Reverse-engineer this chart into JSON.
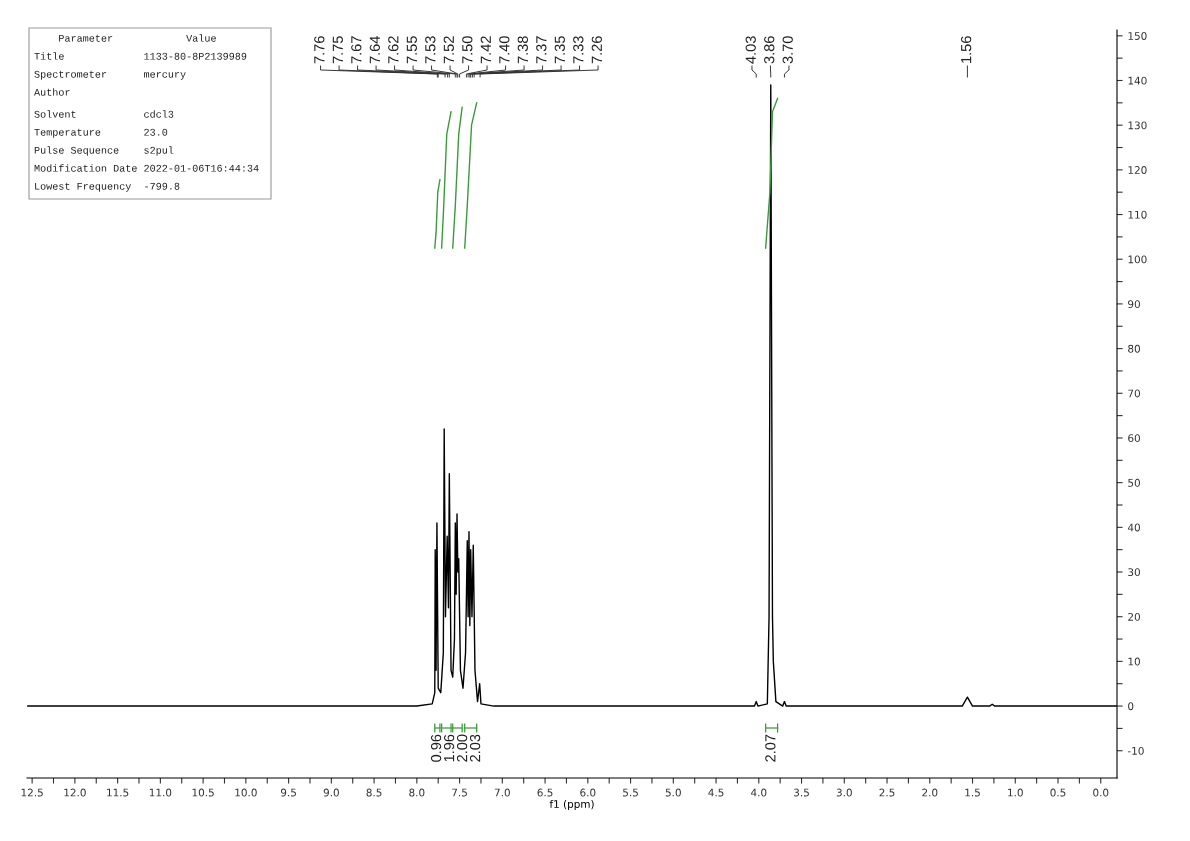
{
  "chart_data": {
    "type": "line",
    "xlabel": "f1 (ppm)",
    "xlim": [
      12.56,
      -0.19
    ],
    "ylim": [
      -16.1,
      151.3
    ],
    "xticks": [
      {
        "value": 12.5,
        "label": "12.5"
      },
      {
        "value": 12.25,
        "label": null
      },
      {
        "value": 12,
        "label": "12.0"
      },
      {
        "value": 11.75,
        "label": null
      },
      {
        "value": 11.5,
        "label": "11.5"
      },
      {
        "value": 11.25,
        "label": null
      },
      {
        "value": 11,
        "label": "11.0"
      },
      {
        "value": 10.75,
        "label": null
      },
      {
        "value": 10.5,
        "label": "10.5"
      },
      {
        "value": 10.25,
        "label": null
      },
      {
        "value": 10,
        "label": "10.0"
      },
      {
        "value": 9.75,
        "label": null
      },
      {
        "value": 9.5,
        "label": "9.5"
      },
      {
        "value": 9.25,
        "label": null
      },
      {
        "value": 9,
        "label": "9.0"
      },
      {
        "value": 8.75,
        "label": null
      },
      {
        "value": 8.5,
        "label": "8.5"
      },
      {
        "value": 8.25,
        "label": null
      },
      {
        "value": 8,
        "label": "8.0"
      },
      {
        "value": 7.75,
        "label": null
      },
      {
        "value": 7.5,
        "label": "7.5"
      },
      {
        "value": 7.25,
        "label": null
      },
      {
        "value": 7,
        "label": "7.0"
      },
      {
        "value": 6.75,
        "label": null
      },
      {
        "value": 6.5,
        "label": "6.5"
      },
      {
        "value": 6.25,
        "label": null
      },
      {
        "value": 6,
        "label": "6.0"
      },
      {
        "value": 5.75,
        "label": null
      },
      {
        "value": 5.5,
        "label": "5.5"
      },
      {
        "value": 5.25,
        "label": null
      },
      {
        "value": 5,
        "label": "5.0"
      },
      {
        "value": 4.75,
        "label": null
      },
      {
        "value": 4.5,
        "label": "4.5"
      },
      {
        "value": 4.25,
        "label": null
      },
      {
        "value": 4,
        "label": "4.0"
      },
      {
        "value": 3.75,
        "label": null
      },
      {
        "value": 3.5,
        "label": "3.5"
      },
      {
        "value": 3.25,
        "label": null
      },
      {
        "value": 3,
        "label": "3.0"
      },
      {
        "value": 2.75,
        "label": null
      },
      {
        "value": 2.5,
        "label": "2.5"
      },
      {
        "value": 2.25,
        "label": null
      },
      {
        "value": 2,
        "label": "2.0"
      },
      {
        "value": 1.75,
        "label": null
      },
      {
        "value": 1.5,
        "label": "1.5"
      },
      {
        "value": 1.25,
        "label": null
      },
      {
        "value": 1,
        "label": "1.0"
      },
      {
        "value": 0.75,
        "label": null
      },
      {
        "value": 0.5,
        "label": "0.5"
      },
      {
        "value": 0.25,
        "label": null
      },
      {
        "value": 0,
        "label": "0.0"
      }
    ],
    "yticks": [
      -10,
      {
        "value": -5,
        "label": null
      },
      0,
      {
        "value": 5,
        "label": null
      },
      10,
      {
        "value": 15,
        "label": null
      },
      20,
      {
        "value": 25,
        "label": null
      },
      30,
      {
        "value": 35,
        "label": null
      },
      40,
      {
        "value": 45,
        "label": null
      },
      50,
      {
        "value": 55,
        "label": null
      },
      60,
      {
        "value": 65,
        "label": null
      },
      70,
      {
        "value": 75,
        "label": null
      },
      80,
      {
        "value": 85,
        "label": null
      },
      90,
      {
        "value": 95,
        "label": null
      },
      100,
      {
        "value": 105,
        "label": null
      },
      110,
      {
        "value": 115,
        "label": null
      },
      120,
      {
        "value": 125,
        "label": null
      },
      130,
      {
        "value": 135,
        "label": null
      },
      140,
      {
        "value": 145,
        "label": null
      },
      150
    ],
    "grid": false,
    "marker": "none",
    "line_style": "solid",
    "series": [
      {
        "color": "#000000",
        "x": [
          12.55,
          8.0,
          7.82,
          7.79,
          7.785,
          7.775,
          7.765,
          7.75,
          7.72,
          7.69,
          7.68,
          7.665,
          7.645,
          7.63,
          7.62,
          7.6,
          7.58,
          7.56,
          7.55,
          7.54,
          7.53,
          7.52,
          7.51,
          7.49,
          7.46,
          7.43,
          7.41,
          7.4,
          7.39,
          7.38,
          7.37,
          7.355,
          7.34,
          7.32,
          7.29,
          7.265,
          7.25,
          7.1,
          4.05,
          4.03,
          4.01,
          3.9,
          3.88,
          3.86,
          3.84,
          3.83,
          3.8,
          3.72,
          3.7,
          3.68,
          1.62,
          1.56,
          1.5,
          1.3,
          1.27,
          1.24,
          -0.18
        ],
        "values": [
          0,
          0,
          0.5,
          3,
          35,
          8,
          41,
          4,
          3,
          12,
          62,
          20,
          38,
          22,
          52,
          8,
          6.5,
          15,
          41,
          25,
          43,
          30,
          33,
          8,
          4,
          12,
          37,
          20,
          39,
          18,
          35,
          20,
          36,
          8,
          1,
          5,
          0.5,
          0,
          0,
          1,
          0,
          0.5,
          20,
          139,
          20,
          10,
          1,
          0,
          1,
          0,
          0,
          2,
          0,
          0,
          0.4,
          0,
          0
        ]
      },
      {
        "color": "#3a9a3a",
        "x": [
          7.79,
          7.775,
          7.755,
          7.73
        ],
        "values": [
          102.5,
          106,
          115,
          117.8
        ]
      },
      {
        "color": "#3a9a3a",
        "x": [
          7.71,
          7.69,
          7.65,
          7.6
        ],
        "values": [
          102.5,
          110,
          128,
          133
        ]
      },
      {
        "color": "#3a9a3a",
        "x": [
          7.58,
          7.55,
          7.51,
          7.47
        ],
        "values": [
          102.5,
          112,
          128,
          134
        ]
      },
      {
        "color": "#3a9a3a",
        "x": [
          7.44,
          7.41,
          7.36,
          7.3
        ],
        "values": [
          102.5,
          112,
          130,
          135
        ]
      },
      {
        "color": "#3a9a3a",
        "x": [
          3.92,
          3.87,
          3.84,
          3.78
        ],
        "values": [
          102.5,
          115,
          133,
          136
        ]
      }
    ],
    "annotations": [
      "    Parameter            Value",
      "Title             1133-80-8P2139989",
      "Spectrometer      mercury",
      "Author",
      "Solvent           cdcl3",
      "Temperature       23.0",
      "Pulse Sequence    s2pul",
      "Modification Date 2022-01-06T16:44:34",
      "Lowest Frequency  -799.8",
      {
        "text": "7.76",
        "x": 7.76
      },
      {
        "text": "7.75",
        "x": 7.75
      },
      {
        "text": "7.67",
        "x": 7.67
      },
      {
        "text": "7.64",
        "x": 7.64
      },
      {
        "text": "7.62",
        "x": 7.62
      },
      {
        "text": "7.55",
        "x": 7.55
      },
      {
        "text": "7.53",
        "x": 7.53
      },
      {
        "text": "7.52",
        "x": 7.52
      },
      {
        "text": "7.50",
        "x": 7.5
      },
      {
        "text": "7.42",
        "x": 7.42
      },
      {
        "text": "7.40",
        "x": 7.4
      },
      {
        "text": "7.38",
        "x": 7.38
      },
      {
        "text": "7.37",
        "x": 7.37
      },
      {
        "text": "7.35",
        "x": 7.35
      },
      {
        "text": "7.33",
        "x": 7.33
      },
      {
        "text": "7.26",
        "x": 7.26
      },
      {
        "text": "4.03",
        "x": 4.03
      },
      {
        "text": "3.86",
        "x": 3.86
      },
      {
        "text": "3.70",
        "x": 3.7
      },
      {
        "text": "1.56",
        "x": 1.56
      },
      "0.96",
      "1.96",
      "2.00",
      "2.03",
      "2.07"
    ]
  }
}
